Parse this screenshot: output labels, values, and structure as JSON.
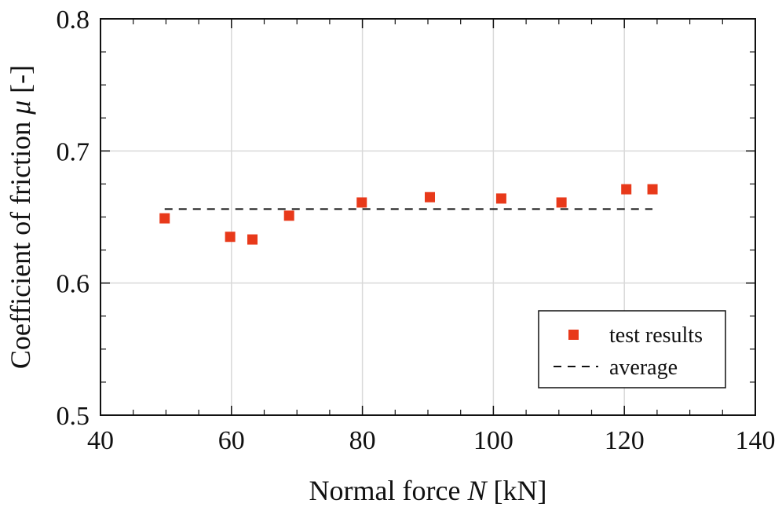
{
  "chart_data": {
    "type": "scatter",
    "xlabel": {
      "prefix": "Normal force ",
      "symbol": "N",
      "suffix": " [kN]"
    },
    "ylabel": {
      "prefix": "Coefficient of friction ",
      "symbol": "μ",
      "suffix": " [-]"
    },
    "xlim": [
      40,
      140
    ],
    "ylim": [
      0.5,
      0.8
    ],
    "xticks": [
      40,
      60,
      80,
      100,
      120,
      140
    ],
    "yticks": [
      0.5,
      0.6,
      0.7,
      0.8
    ],
    "xtick_labels": [
      "40",
      "60",
      "80",
      "100",
      "120",
      "140"
    ],
    "ytick_labels": [
      "0.5",
      "0.6",
      "0.7",
      "0.8"
    ],
    "x_minor_step": 5,
    "y_minor_step": 0.025,
    "grid": true,
    "legend_position": "bottom-right",
    "series": [
      {
        "name": "test results",
        "kind": "scatter",
        "marker": "square",
        "color": "#e8391a",
        "x": [
          49.8,
          59.8,
          63.2,
          68.8,
          79.9,
          90.3,
          101.2,
          110.4,
          120.3,
          124.3
        ],
        "y": [
          0.649,
          0.635,
          0.633,
          0.651,
          0.661,
          0.665,
          0.664,
          0.661,
          0.671,
          0.671
        ]
      },
      {
        "name": "average",
        "kind": "line",
        "style": "dashed",
        "color": "#111111",
        "x": [
          49.8,
          124.3
        ],
        "y": [
          0.656,
          0.656
        ]
      }
    ]
  }
}
